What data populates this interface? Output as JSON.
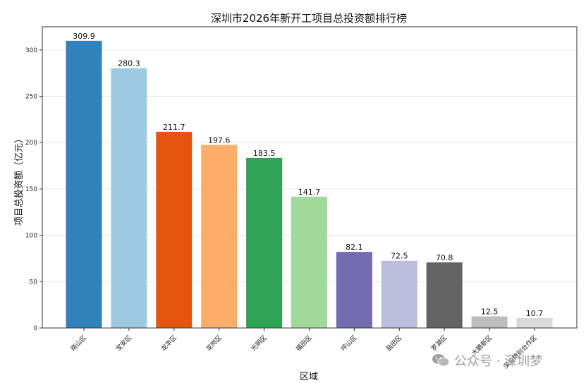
{
  "chart_data": {
    "type": "bar",
    "title": "深圳市2026年新开工项目总投资额排行榜",
    "xlabel": "区域",
    "ylabel": "项目总投资额（亿元）",
    "ylim": [
      0,
      325
    ],
    "yticks": [
      0,
      50,
      100,
      150,
      200,
      250,
      300
    ],
    "grid": "horizontal",
    "categories": [
      "南山区",
      "宝安区",
      "龙华区",
      "龙岗区",
      "光明区",
      "福田区",
      "坪山区",
      "盐田区",
      "罗湖区",
      "大鹏新区",
      "深汕特别合作区"
    ],
    "values": [
      309.9,
      280.3,
      211.7,
      197.6,
      183.5,
      141.7,
      82.1,
      72.5,
      70.8,
      12.5,
      10.7
    ],
    "value_labels": [
      "309.9",
      "280.3",
      "211.7",
      "197.6",
      "183.5",
      "141.7",
      "82.1",
      "72.5",
      "70.8",
      "12.5",
      "10.7"
    ],
    "colors": [
      "#3182bd",
      "#9ecae1",
      "#e6550d",
      "#fdae6b",
      "#31a354",
      "#a1d99b",
      "#756bb1",
      "#bcbddc",
      "#636363",
      "#bdbdbd",
      "#d9d9d9"
    ]
  },
  "watermark": {
    "icon": "wechat-icon",
    "text": "公众号 · 深圳梦"
  }
}
